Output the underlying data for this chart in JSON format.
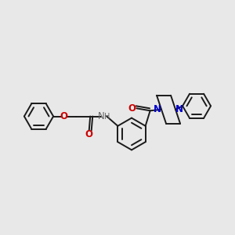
{
  "background_color": "#e8e8e8",
  "bond_color": "#1a1a1a",
  "O_color": "#cc0000",
  "N_color": "#0000cc",
  "H_color": "#666666",
  "line_width": 1.4,
  "font_size": 8.5,
  "figsize": [
    3.0,
    3.0
  ],
  "dpi": 100,
  "xlim": [
    0.0,
    10.0
  ],
  "ylim": [
    1.5,
    9.5
  ]
}
